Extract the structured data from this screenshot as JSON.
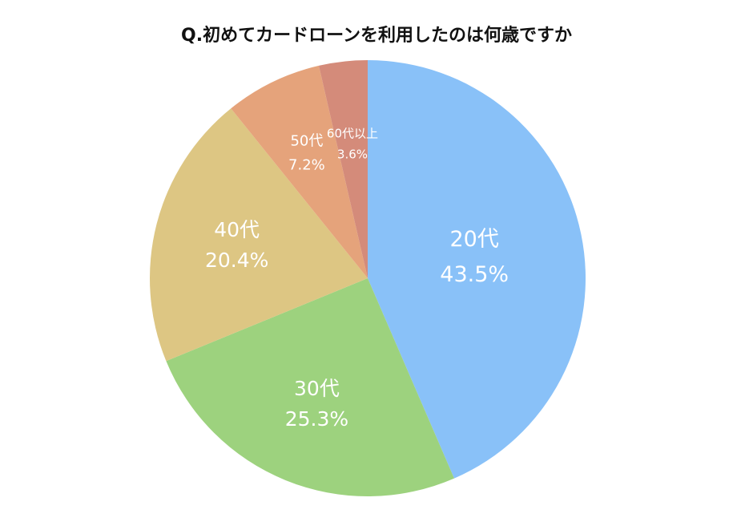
{
  "chart_data": {
    "type": "pie",
    "title": "Q.初めてカードローンを利用したのは何歳ですか",
    "slices": [
      {
        "label": "20代",
        "value": 43.5,
        "value_label": "43.5%",
        "color": "#89C1F8"
      },
      {
        "label": "30代",
        "value": 25.3,
        "value_label": "25.3%",
        "color": "#9DD27E"
      },
      {
        "label": "40代",
        "value": 20.4,
        "value_label": "20.4%",
        "color": "#DDC683"
      },
      {
        "label": "50代",
        "value": 7.2,
        "value_label": "7.2%",
        "color": "#E5A37B"
      },
      {
        "label": "60代以上",
        "value": 3.6,
        "value_label": "3.6%",
        "color": "#D48B7A"
      }
    ],
    "start_position": "top",
    "direction": "clockwise"
  }
}
